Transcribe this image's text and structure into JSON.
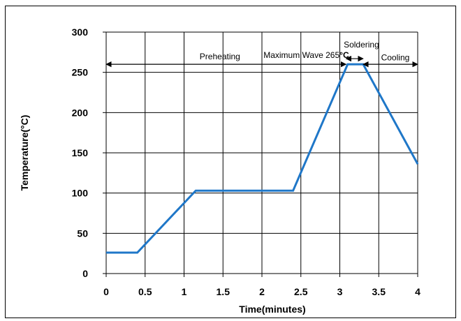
{
  "chart_data": {
    "type": "line",
    "title": "",
    "xlabel": "Time(minutes)",
    "ylabel": "Temperature(°C)",
    "xlim": [
      0,
      4
    ],
    "ylim": [
      0,
      300
    ],
    "x_ticks": [
      "0",
      "0.5",
      "1",
      "1.5",
      "2",
      "2.5",
      "3",
      "3.5",
      "4"
    ],
    "y_ticks": [
      "0",
      "50",
      "100",
      "150",
      "200",
      "250",
      "300"
    ],
    "grid": true,
    "series": [
      {
        "color": "#1f77c8",
        "points": [
          {
            "x": 0,
            "y": 26
          },
          {
            "x": 0.4,
            "y": 26
          },
          {
            "x": 1.15,
            "y": 103
          },
          {
            "x": 2.4,
            "y": 103
          },
          {
            "x": 3.1,
            "y": 260
          },
          {
            "x": 3.3,
            "y": 260
          },
          {
            "x": 4.0,
            "y": 136
          }
        ]
      }
    ],
    "annotations": [
      {
        "text": "Preheating",
        "x_start": 0,
        "x_end": 3.08,
        "y": 260,
        "label_x": 1.2,
        "label_y": 266
      },
      {
        "text": "Maximum Wave 265",
        "suffix": "°C",
        "label_x": 2.02,
        "label_y": 268
      },
      {
        "text": "Soldering",
        "x_start": 3.08,
        "x_end": 3.3,
        "y": 267,
        "label_x": 3.05,
        "label_y": 281
      },
      {
        "text": "Cooling",
        "x_start": 3.3,
        "x_end": 4.0,
        "y": 260,
        "label_x": 3.53,
        "label_y": 265
      }
    ]
  }
}
